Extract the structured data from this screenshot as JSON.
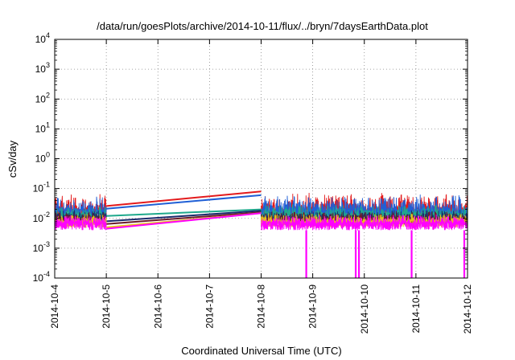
{
  "chart_data": {
    "type": "line",
    "title": "/data/run/goesPlots/archive/2014-10-11/flux/../bryn/7daysEarthData.plot",
    "xlabel": "Coordinated Universal Time (UTC)",
    "ylabel": "cSv/day",
    "y_scale": "log",
    "ylim": [
      0.0001,
      10000
    ],
    "xlim": [
      "2014-10-04",
      "2014-10-12"
    ],
    "grid": true,
    "legend": "none",
    "x_ticks": [
      "2014-10-4",
      "2014-10-5",
      "2014-10-6",
      "2014-10-7",
      "2014-10-8",
      "2014-10-9",
      "2014-10-10",
      "2014-10-11",
      "2014-10-12"
    ],
    "y_ticks": [
      {
        "base": "10",
        "exp": "-4"
      },
      {
        "base": "10",
        "exp": "-3"
      },
      {
        "base": "10",
        "exp": "-2"
      },
      {
        "base": "10",
        "exp": "-1"
      },
      {
        "base": "10",
        "exp": "0"
      },
      {
        "base": "10",
        "exp": "1"
      },
      {
        "base": "10",
        "exp": "2"
      },
      {
        "base": "10",
        "exp": "3"
      },
      {
        "base": "10",
        "exp": "4"
      }
    ],
    "data_gap": {
      "from": "2014-10-05",
      "to": "2014-10-08"
    },
    "series": [
      {
        "color": "#e31a1c",
        "gap_start": 0.026,
        "gap_end": 0.08,
        "base": 0.02,
        "low": 0.012,
        "high": 0.075
      },
      {
        "color": "#1f5fd6",
        "gap_start": 0.021,
        "gap_end": 0.06,
        "base": 0.018,
        "low": 0.01,
        "high": 0.065
      },
      {
        "color": "#1fa98c",
        "gap_start": 0.012,
        "gap_end": 0.02,
        "base": 0.013,
        "low": 0.008,
        "high": 0.03
      },
      {
        "color": "#1a2a6c",
        "gap_start": 0.008,
        "gap_end": 0.018,
        "base": 0.01,
        "low": 0.007,
        "high": 0.02
      },
      {
        "color": "#6a1b2a",
        "gap_start": 0.0065,
        "gap_end": 0.016,
        "base": 0.009,
        "low": 0.006,
        "high": 0.018
      },
      {
        "color": "#e8c21a",
        "gap_start": 0.005,
        "gap_end": 0.015,
        "base": 0.008,
        "low": 0.005,
        "high": 0.015
      },
      {
        "color": "#ff00ff",
        "gap_start": 0.0045,
        "gap_end": 0.015,
        "base": 0.007,
        "low": 0.004,
        "high": 0.014
      }
    ],
    "dropouts": [
      {
        "series_color": "#ff00ff",
        "x": "2014-10-08T21:00",
        "value": 0.0001
      },
      {
        "series_color": "#ff00ff",
        "x": "2014-10-09T20:00",
        "value": 0.0001
      },
      {
        "series_color": "#ff00ff",
        "x": "2014-10-09T21:30",
        "value": 0.0001
      },
      {
        "series_color": "#ff00ff",
        "x": "2014-10-10T22:00",
        "value": 0.0001
      },
      {
        "series_color": "#ff00ff",
        "x": "2014-10-11T22:30",
        "value": 0.0001
      }
    ]
  }
}
